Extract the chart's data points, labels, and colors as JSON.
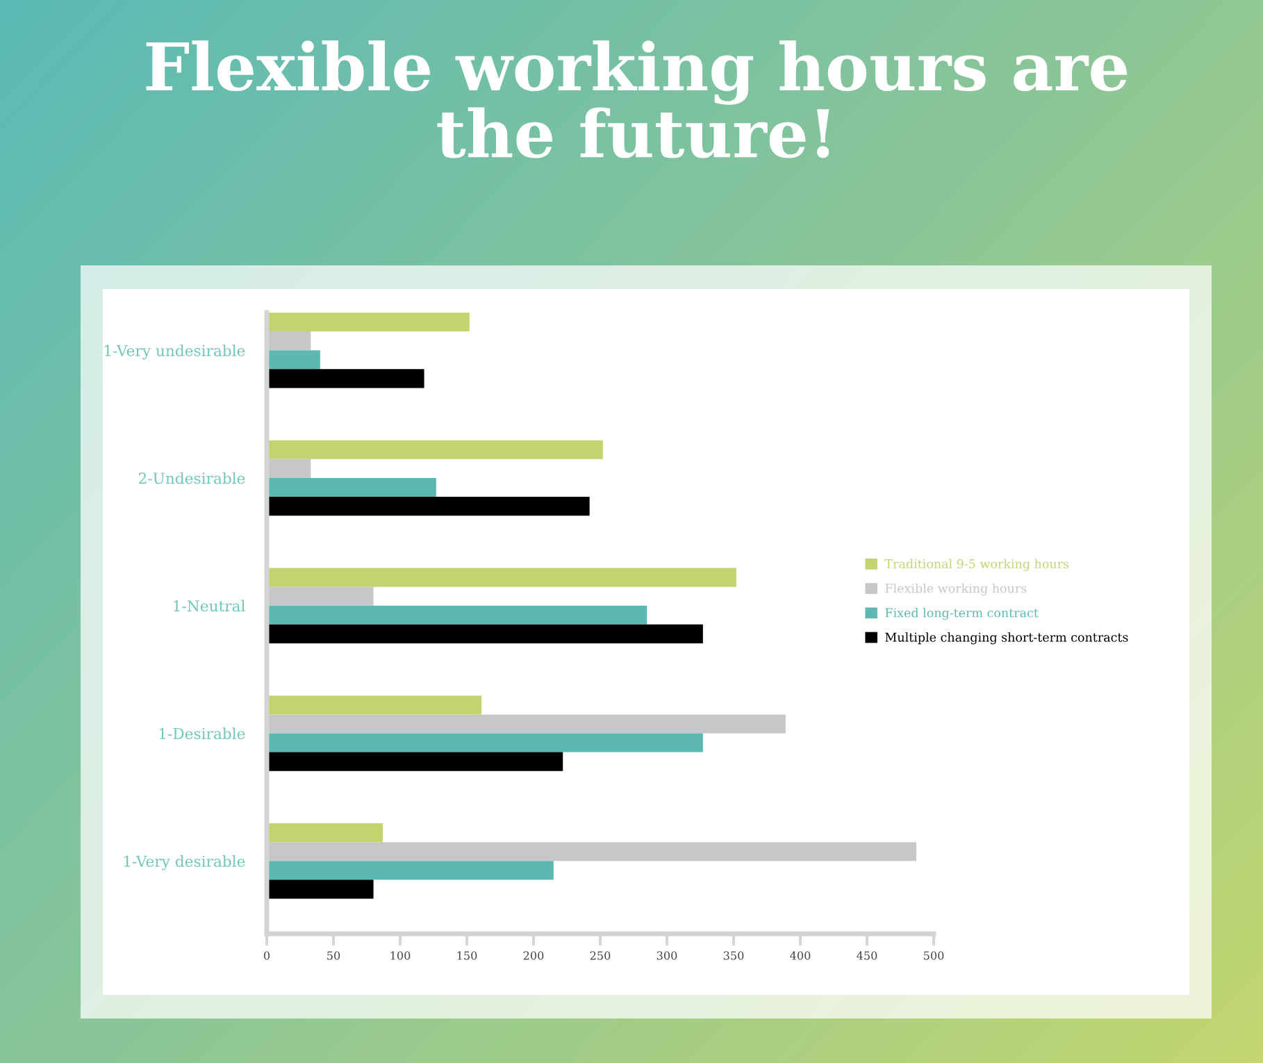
{
  "chart_data": {
    "type": "bar",
    "orientation": "horizontal",
    "title": "Flexible working hours are\nthe future!",
    "categories": [
      "1-Very undesirable",
      "2-Undesirable",
      "1-Neutral",
      "1-Desirable",
      "1-Very desirable"
    ],
    "series": [
      {
        "name": "Traditional 9-5 working hours",
        "color": "#c5d36f",
        "values": [
          152,
          252,
          352,
          161,
          87
        ]
      },
      {
        "name": "Flexible working hours",
        "color": "#c6c7c8",
        "values": [
          33,
          33,
          80,
          389,
          487
        ]
      },
      {
        "name": "Fixed long-term contract",
        "color": "#5db8b3",
        "values": [
          40,
          127,
          285,
          327,
          215
        ]
      },
      {
        "name": "Multiple changing short-term contracts",
        "color": "#000000",
        "values": [
          118,
          242,
          327,
          222,
          80
        ]
      }
    ],
    "xlim": [
      0,
      500
    ],
    "xticks": [
      0,
      50,
      100,
      150,
      200,
      250,
      300,
      350,
      400,
      450,
      500
    ],
    "legend": "right"
  }
}
